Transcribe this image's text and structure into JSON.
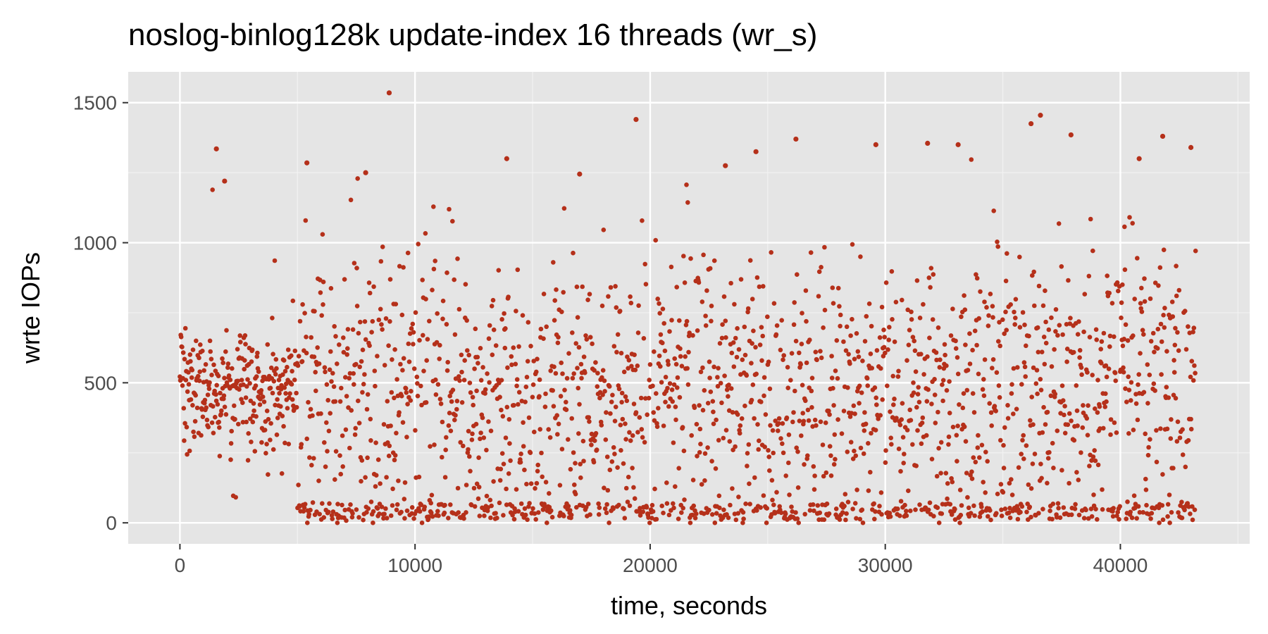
{
  "chart_data": {
    "type": "scatter",
    "title": "noslog-binlog128k update-index 16 threads (wr_s)",
    "xlabel": "time, seconds",
    "ylabel": "wrte IOPs",
    "xlim": [
      -2200,
      45500
    ],
    "ylim": [
      -75,
      1610
    ],
    "x_ticks": [
      0,
      10000,
      20000,
      30000,
      40000
    ],
    "x_tick_labels": [
      "0",
      "10000",
      "20000",
      "30000",
      "40000"
    ],
    "y_ticks": [
      0,
      500,
      1000,
      1500
    ],
    "y_tick_labels": [
      "0",
      "500",
      "1000",
      "1500"
    ],
    "grid": true,
    "point_color": "#b5301a",
    "panel_color": "#e5e5e5",
    "sampling_interval_s": 5,
    "x_range": [
      0,
      43200
    ],
    "series": [
      {
        "name": "wr_s",
        "description_points": [
          {
            "x": 0,
            "y": 480
          },
          {
            "x": 1000,
            "y": 470
          },
          {
            "x": 2000,
            "y": 480
          },
          {
            "x": 3000,
            "y": 460
          },
          {
            "x": 4000,
            "y": 470
          },
          {
            "x": 5000,
            "y": 500
          },
          {
            "x": 8000,
            "y": 540
          },
          {
            "x": 10000,
            "y": 560
          },
          {
            "x": 13000,
            "y": 520
          },
          {
            "x": 15000,
            "y": 480
          },
          {
            "x": 18000,
            "y": 540
          },
          {
            "x": 20000,
            "y": 520
          },
          {
            "x": 23000,
            "y": 500
          },
          {
            "x": 25000,
            "y": 470
          },
          {
            "x": 28000,
            "y": 520
          },
          {
            "x": 30000,
            "y": 560
          },
          {
            "x": 33000,
            "y": 500
          },
          {
            "x": 35000,
            "y": 460
          },
          {
            "x": 38000,
            "y": 520
          },
          {
            "x": 40000,
            "y": 560
          },
          {
            "x": 43000,
            "y": 500
          }
        ],
        "outliers": [
          {
            "x": 8900,
            "y": 1535
          },
          {
            "x": 19400,
            "y": 1440
          },
          {
            "x": 36600,
            "y": 1455
          },
          {
            "x": 37900,
            "y": 1385
          },
          {
            "x": 36200,
            "y": 1425
          },
          {
            "x": 41800,
            "y": 1380
          },
          {
            "x": 1550,
            "y": 1335
          },
          {
            "x": 1900,
            "y": 1220
          },
          {
            "x": 13900,
            "y": 1300
          },
          {
            "x": 24500,
            "y": 1325
          },
          {
            "x": 26200,
            "y": 1370
          },
          {
            "x": 29600,
            "y": 1350
          },
          {
            "x": 31800,
            "y": 1355
          },
          {
            "x": 33100,
            "y": 1350
          },
          {
            "x": 43000,
            "y": 1340
          },
          {
            "x": 5400,
            "y": 1285
          },
          {
            "x": 7900,
            "y": 1250
          },
          {
            "x": 17000,
            "y": 1245
          },
          {
            "x": 23200,
            "y": 1275
          },
          {
            "x": 40800,
            "y": 1300
          }
        ]
      }
    ]
  }
}
